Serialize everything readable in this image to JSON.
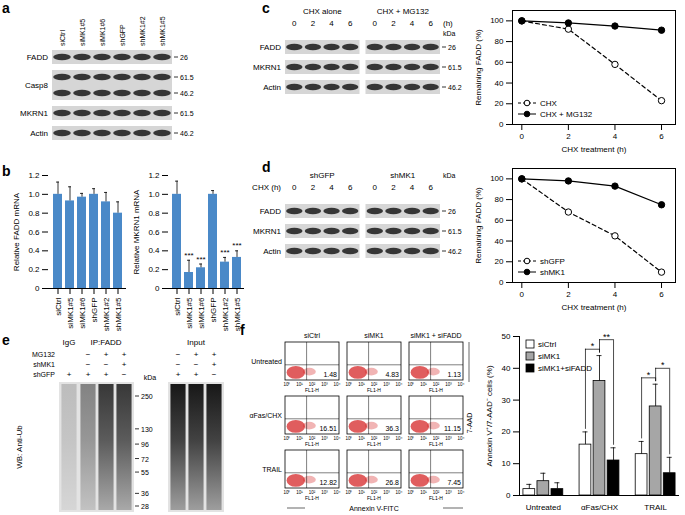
{
  "figure": {
    "a": {
      "letter": "a",
      "lanes": [
        "siCtrl",
        "siMK1#5",
        "siMK1#6",
        "shGFP",
        "shMK1#2",
        "shMK1#5"
      ],
      "rows": [
        {
          "name": "FADD",
          "kda": [
            26
          ]
        },
        {
          "name": "Casp8",
          "kda": [
            61.5,
            46.2
          ]
        },
        {
          "name": "MKRN1",
          "kda": [
            61.5
          ]
        },
        {
          "name": "Actin",
          "kda": [
            46.2
          ]
        }
      ]
    },
    "b": {
      "letter": "b"
    },
    "c": {
      "letter": "c",
      "groups": [
        "CHX alone",
        "CHX + MG132"
      ],
      "times": [
        0,
        2,
        4,
        6
      ],
      "time_unit": "(h)",
      "kda_header": "kDa",
      "rows": [
        {
          "name": "FADD",
          "kda": [
            26
          ]
        },
        {
          "name": "MKRN1",
          "kda": [
            61.5
          ]
        },
        {
          "name": "Actin",
          "kda": [
            46.2
          ]
        }
      ]
    },
    "d": {
      "letter": "d",
      "groups": [
        "shGFP",
        "shMK1"
      ],
      "time_label": "CHX (h)",
      "times": [
        0,
        2,
        4,
        6
      ],
      "kda_header": "kDa",
      "rows": [
        {
          "name": "FADD",
          "kda": [
            26
          ]
        },
        {
          "name": "MKRN1",
          "kda": [
            61.5
          ]
        },
        {
          "name": "Actin",
          "kda": [
            46.2
          ]
        }
      ]
    },
    "e": {
      "letter": "e",
      "lane_groups": [
        {
          "label": "IgG",
          "lanes": 1
        },
        {
          "label": "IP:FADD",
          "lanes": 3
        },
        {
          "label": "Input",
          "lanes": 3
        }
      ],
      "conditions": [
        {
          "name": "MG132",
          "marks": [
            null,
            "−",
            "+",
            "+",
            "−",
            "+",
            "+"
          ]
        },
        {
          "name": "shMK1",
          "marks": [
            null,
            "−",
            "−",
            "+",
            "−",
            "−",
            "+"
          ]
        },
        {
          "name": "shGFP",
          "marks": [
            "+",
            "+",
            "+",
            "−",
            "+",
            "+",
            "−"
          ]
        }
      ],
      "kda_header": "kDa",
      "kda": [
        250,
        130,
        96,
        72,
        55,
        36,
        28
      ],
      "western_blot": "WB: Anti-Ub"
    },
    "f": {
      "letter": "f",
      "columns": [
        "siCtrl",
        "siMK1",
        "siMK1 + siFADD"
      ],
      "rows": [
        "Untreated",
        "αFas/CHX",
        "TRAIL"
      ],
      "percentages": [
        [
          1.48,
          4.83,
          1.13
        ],
        [
          16.51,
          36.3,
          11.15
        ],
        [
          12.82,
          26.8,
          7.45
        ]
      ],
      "decade_labels": [
        "10⁰",
        "10¹",
        "10²",
        "10³",
        "10⁴"
      ],
      "channel": "FL1-H",
      "x_label": "Annexin V-FITC",
      "y_label": "7-AAD"
    }
  },
  "chart_data": [
    {
      "type": "bar",
      "y_label": "Relative FADD mRNA",
      "categories": [
        "siCtrl",
        "siMK1#5",
        "siMK1#6",
        "shGFP",
        "shMK1#2",
        "shMK1#5"
      ],
      "values": [
        1,
        0.93,
        0.97,
        1,
        0.92,
        0.8
      ],
      "errors": [
        0.13,
        0.15,
        0.04,
        0.06,
        0.1,
        0.12
      ],
      "color": "#4a89c8",
      "ylim": [
        0,
        1.2
      ],
      "yticks": [
        0,
        0.2,
        0.4,
        0.6,
        0.8,
        {
          "value": 1,
          "label": "1.0"
        },
        1.2
      ]
    },
    {
      "type": "bar",
      "y_label": "Relative MKRN1 mRNA",
      "categories": [
        "siCtrl",
        "siMK1#5",
        "siMK1#6",
        "shGFP",
        "shMK1#2",
        "shMK1#5"
      ],
      "values": [
        1,
        0.17,
        0.22,
        1,
        0.28,
        0.33
      ],
      "errors": [
        0.14,
        0.13,
        0.04,
        0.04,
        0.05,
        0.07
      ],
      "significance": [
        null,
        "***",
        "***",
        null,
        "***",
        "***"
      ],
      "color": "#4a89c8",
      "ylim": [
        0,
        1.2
      ],
      "yticks": [
        0,
        0.2,
        0.4,
        0.6,
        0.8,
        {
          "value": 1,
          "label": "1.0"
        },
        1.2
      ]
    },
    {
      "type": "line",
      "x_label": "CHX treatment (h)",
      "y_label": "Remaining FADD (%)",
      "x": [
        0,
        2,
        4,
        6
      ],
      "series": [
        {
          "name": "CHX",
          "color": "#000000",
          "marker": "open_circle",
          "line_style": "dashed",
          "values": [
            100,
            92,
            58,
            23
          ]
        },
        {
          "name": "CHX + MG132",
          "color": "#000000",
          "marker": "circle",
          "line_style": "solid",
          "values": [
            100,
            98,
            95,
            91
          ]
        }
      ],
      "xlim": [
        -0.4,
        6.6
      ],
      "ylim": [
        0,
        110
      ],
      "xticks": [
        0,
        2,
        4,
        6
      ],
      "yticks": [
        0,
        20,
        40,
        60,
        80,
        100
      ],
      "legend": "bottom-left"
    },
    {
      "type": "line",
      "x_label": "CHX treatment (h)",
      "y_label": "Remaining FADD (%)",
      "x": [
        0,
        2,
        4,
        6
      ],
      "series": [
        {
          "name": "shGFP",
          "color": "#000000",
          "marker": "open_circle",
          "line_style": "dashed",
          "values": [
            100,
            68,
            45,
            10
          ]
        },
        {
          "name": "shMK1",
          "color": "#000000",
          "marker": "circle",
          "line_style": "solid",
          "values": [
            100,
            98,
            93,
            75
          ]
        }
      ],
      "xlim": [
        -0.4,
        6.6
      ],
      "ylim": [
        0,
        110
      ],
      "xticks": [
        0,
        2,
        4,
        6
      ],
      "yticks": [
        0,
        20,
        40,
        60,
        80,
        100
      ],
      "legend": "bottom-left"
    },
    {
      "type": "bar",
      "y_label": "Annexin V⁺/7-AAD⁻ cells (%)",
      "categories": [
        "Untreated",
        "αFas/CHX",
        "TRAIL"
      ],
      "series": [
        {
          "name": "siCtrl",
          "color": "#ffffff",
          "values": [
            2,
            16,
            13
          ],
          "errors": [
            1.5,
            4,
            4
          ]
        },
        {
          "name": "siMK1",
          "color": "#a6a6a6",
          "values": [
            4.5,
            36,
            28
          ],
          "errors": [
            2.5,
            8,
            7
          ]
        },
        {
          "name": "siMK1+siFADD",
          "color": "#000000",
          "values": [
            2,
            11,
            7
          ],
          "errors": [
            2,
            4,
            5
          ]
        }
      ],
      "ylim": [
        0,
        50
      ],
      "yticks": [
        0,
        10,
        20,
        30,
        40,
        50
      ],
      "legend": "top-left",
      "comparisons": [
        {
          "category": "αFas/CHX",
          "between": [
            "siCtrl",
            "siMK1"
          ],
          "label": "*"
        },
        {
          "category": "αFas/CHX",
          "between": [
            "siMK1",
            "siMK1+siFADD"
          ],
          "label": "**"
        },
        {
          "category": "TRAIL",
          "between": [
            "siCtrl",
            "siMK1"
          ],
          "label": "*"
        },
        {
          "category": "TRAIL",
          "between": [
            "siMK1",
            "siMK1+siFADD"
          ],
          "label": "*"
        }
      ]
    }
  ]
}
